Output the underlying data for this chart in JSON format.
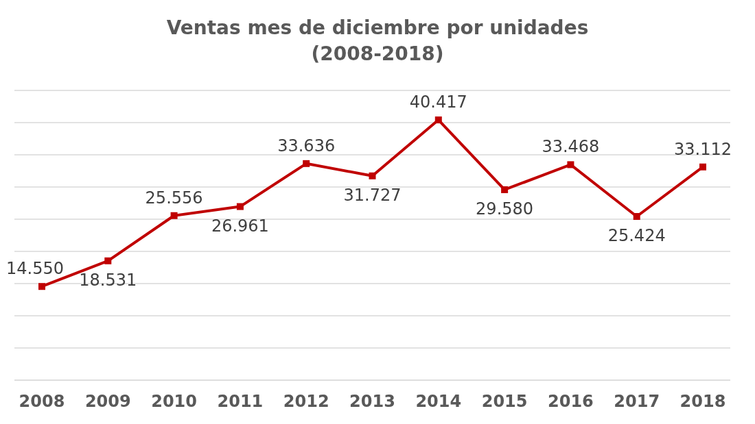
{
  "chart_data": {
    "type": "line",
    "title": "Ventas mes de diciembre por unidades\n(2008-2018)",
    "categories": [
      "2008",
      "2009",
      "2010",
      "2011",
      "2012",
      "2013",
      "2014",
      "2015",
      "2016",
      "2017",
      "2018"
    ],
    "series": [
      {
        "color": "#c00000",
        "values": [
          14550,
          18531,
          25556,
          26961,
          33636,
          31727,
          40417,
          29580,
          33468,
          25424,
          33112
        ],
        "value_labels": [
          "14.550",
          "18.531",
          "25.556",
          "26.961",
          "33.636",
          "31.727",
          "40.417",
          "29.580",
          "33.468",
          "25.424",
          "33.112"
        ]
      }
    ],
    "ylim": [
      0,
      45000
    ],
    "grid": "y",
    "tick_labels": "x",
    "marker": "square",
    "line_style": "solid"
  }
}
